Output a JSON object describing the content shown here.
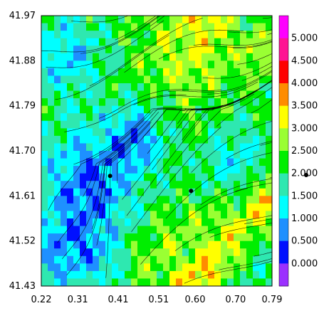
{
  "chart_data": {
    "type": "heatmap",
    "title": "",
    "xlabel": "",
    "ylabel": "",
    "xlim": [
      0.22,
      0.79
    ],
    "ylim": [
      41.43,
      41.97
    ],
    "x_ticks": [
      "0.22",
      "0.31",
      "0.41",
      "0.51",
      "0.60",
      "0.70",
      "0.79"
    ],
    "y_ticks": [
      "41.97",
      "41.88",
      "41.79",
      "41.70",
      "41.61",
      "41.52",
      "41.43"
    ],
    "colorbar": {
      "levels": [
        "0.000",
        "0.500",
        "1.000",
        "1.500",
        "2.000",
        "2.500",
        "3.000",
        "3.500",
        "4.000",
        "4.500",
        "5.000"
      ],
      "colors": [
        "#9b30ff",
        "#0010ff",
        "#1e90ff",
        "#00ffff",
        "#2ee8b0",
        "#00ee00",
        "#9aff33",
        "#ffff00",
        "#ff8c00",
        "#ff0000",
        "#ff1493",
        "#ff00ff"
      ]
    },
    "markers": [
      {
        "x": 0.39,
        "y": 41.65
      },
      {
        "x": 0.59,
        "y": 41.62
      }
    ],
    "overlay": "streamlines"
  }
}
